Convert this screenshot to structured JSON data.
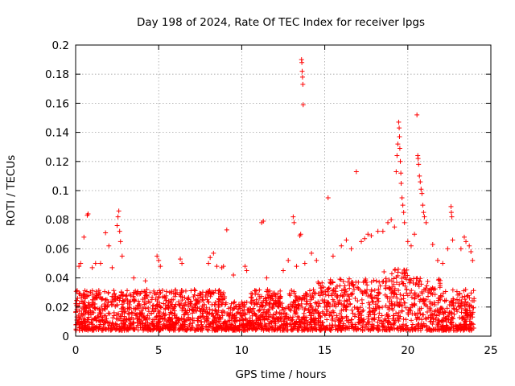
{
  "chart_data": {
    "type": "scatter",
    "title": "Day 198 of 2024, Rate Of TEC Index for receiver lpgs",
    "xlabel": "GPS time / hours",
    "ylabel": "ROTI / TECUs",
    "xlim": [
      0,
      25
    ],
    "ylim": [
      0,
      0.2
    ],
    "xticks": [
      "0",
      "5",
      "10",
      "15",
      "20",
      "25"
    ],
    "yticks": [
      "0",
      "0.02",
      "0.04",
      "0.06",
      "0.08",
      "0.1",
      "0.12",
      "0.14",
      "0.16",
      "0.18",
      "0.2"
    ],
    "grid": true,
    "marker": "+",
    "marker_color": "#ff0000",
    "series": [
      {
        "name": "ROTI",
        "points": [
          [
            0.2,
            0.048
          ],
          [
            0.3,
            0.05
          ],
          [
            0.5,
            0.068
          ],
          [
            0.7,
            0.083
          ],
          [
            0.75,
            0.084
          ],
          [
            1.0,
            0.047
          ],
          [
            1.2,
            0.05
          ],
          [
            1.5,
            0.05
          ],
          [
            1.8,
            0.071
          ],
          [
            2.0,
            0.062
          ],
          [
            2.2,
            0.047
          ],
          [
            2.5,
            0.076
          ],
          [
            2.55,
            0.082
          ],
          [
            2.6,
            0.086
          ],
          [
            2.65,
            0.072
          ],
          [
            2.7,
            0.065
          ],
          [
            2.8,
            0.055
          ],
          [
            3.5,
            0.04
          ],
          [
            4.2,
            0.038
          ],
          [
            4.9,
            0.055
          ],
          [
            5.0,
            0.052
          ],
          [
            5.1,
            0.048
          ],
          [
            6.3,
            0.053
          ],
          [
            6.4,
            0.05
          ],
          [
            8.0,
            0.05
          ],
          [
            8.1,
            0.054
          ],
          [
            8.3,
            0.057
          ],
          [
            8.5,
            0.048
          ],
          [
            8.8,
            0.047
          ],
          [
            8.9,
            0.048
          ],
          [
            9.1,
            0.073
          ],
          [
            9.5,
            0.042
          ],
          [
            10.2,
            0.048
          ],
          [
            10.3,
            0.045
          ],
          [
            11.2,
            0.078
          ],
          [
            11.3,
            0.079
          ],
          [
            11.5,
            0.04
          ],
          [
            12.5,
            0.045
          ],
          [
            12.8,
            0.052
          ],
          [
            13.1,
            0.082
          ],
          [
            13.15,
            0.078
          ],
          [
            13.3,
            0.048
          ],
          [
            13.5,
            0.069
          ],
          [
            13.55,
            0.07
          ],
          [
            13.6,
            0.19
          ],
          [
            13.62,
            0.188
          ],
          [
            13.64,
            0.182
          ],
          [
            13.66,
            0.178
          ],
          [
            13.68,
            0.173
          ],
          [
            13.7,
            0.159
          ],
          [
            13.8,
            0.05
          ],
          [
            14.2,
            0.057
          ],
          [
            14.5,
            0.052
          ],
          [
            15.2,
            0.095
          ],
          [
            15.5,
            0.055
          ],
          [
            16.0,
            0.062
          ],
          [
            16.3,
            0.066
          ],
          [
            16.6,
            0.06
          ],
          [
            16.9,
            0.113
          ],
          [
            17.2,
            0.065
          ],
          [
            17.4,
            0.067
          ],
          [
            17.6,
            0.07
          ],
          [
            17.8,
            0.069
          ],
          [
            18.2,
            0.072
          ],
          [
            18.5,
            0.072
          ],
          [
            18.8,
            0.078
          ],
          [
            19.0,
            0.08
          ],
          [
            19.2,
            0.075
          ],
          [
            19.3,
            0.113
          ],
          [
            19.35,
            0.124
          ],
          [
            19.4,
            0.132
          ],
          [
            19.45,
            0.147
          ],
          [
            19.48,
            0.143
          ],
          [
            19.5,
            0.137
          ],
          [
            19.52,
            0.129
          ],
          [
            19.55,
            0.12
          ],
          [
            19.58,
            0.112
          ],
          [
            19.6,
            0.105
          ],
          [
            19.65,
            0.095
          ],
          [
            19.7,
            0.09
          ],
          [
            19.75,
            0.085
          ],
          [
            19.8,
            0.078
          ],
          [
            20.0,
            0.065
          ],
          [
            20.2,
            0.062
          ],
          [
            20.4,
            0.07
          ],
          [
            20.55,
            0.152
          ],
          [
            20.6,
            0.124
          ],
          [
            20.62,
            0.122
          ],
          [
            20.65,
            0.118
          ],
          [
            20.7,
            0.11
          ],
          [
            20.75,
            0.106
          ],
          [
            20.8,
            0.101
          ],
          [
            20.85,
            0.098
          ],
          [
            20.9,
            0.09
          ],
          [
            20.95,
            0.085
          ],
          [
            21.0,
            0.082
          ],
          [
            21.1,
            0.078
          ],
          [
            21.5,
            0.063
          ],
          [
            21.8,
            0.052
          ],
          [
            22.1,
            0.05
          ],
          [
            22.4,
            0.06
          ],
          [
            22.6,
            0.089
          ],
          [
            22.62,
            0.085
          ],
          [
            22.65,
            0.082
          ],
          [
            22.7,
            0.066
          ],
          [
            23.2,
            0.06
          ],
          [
            23.4,
            0.068
          ],
          [
            23.5,
            0.065
          ],
          [
            23.7,
            0.062
          ],
          [
            23.8,
            0.058
          ],
          [
            23.9,
            0.052
          ]
        ]
      }
    ]
  }
}
